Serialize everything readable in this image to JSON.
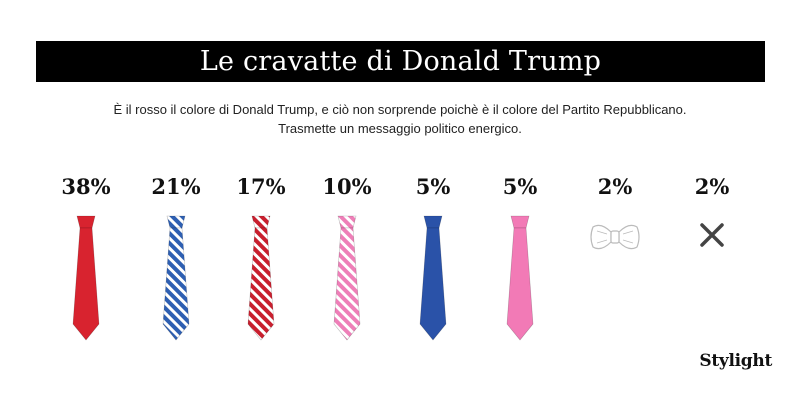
{
  "header": {
    "title": "Le cravatte di Donald Trump",
    "subtitle_line1": "È il rosso il colore di Donald Trump, e ciò non sorprende poichè è il colore del Partito Repubblicano.",
    "subtitle_line2": "Trasmette un messaggio politico energico."
  },
  "brand": "Stylight",
  "chart_data": {
    "type": "bar",
    "title": "Le cravatte di Donald Trump",
    "categories": [
      "",
      "",
      "",
      "",
      "",
      "",
      "",
      ""
    ],
    "values": [
      38,
      21,
      17,
      10,
      5,
      5,
      2,
      2
    ],
    "labels": [
      "38%",
      "21%",
      "17%",
      "10%",
      "5%",
      "5%",
      "2%",
      "2%"
    ],
    "items": [
      {
        "icon": "tie-icon",
        "pattern": "solid",
        "color": "#d8232f",
        "stripe": ""
      },
      {
        "icon": "tie-icon",
        "pattern": "striped",
        "color": "#2e5fb2",
        "stripe": "#ffffff"
      },
      {
        "icon": "tie-icon",
        "pattern": "striped",
        "color": "#c81f2e",
        "stripe": "#ffffff"
      },
      {
        "icon": "tie-icon",
        "pattern": "striped",
        "color": "#ee7fb8",
        "stripe": "#ffffff"
      },
      {
        "icon": "tie-icon",
        "pattern": "solid",
        "color": "#2a52a8",
        "stripe": ""
      },
      {
        "icon": "tie-icon",
        "pattern": "solid",
        "color": "#f27ab6",
        "stripe": ""
      },
      {
        "icon": "bowtie-icon",
        "pattern": "outline",
        "color": "#ffffff",
        "stripe": "#bbbbbb"
      },
      {
        "icon": "no-tie-icon",
        "pattern": "cross",
        "color": "#444444",
        "stripe": ""
      }
    ]
  }
}
